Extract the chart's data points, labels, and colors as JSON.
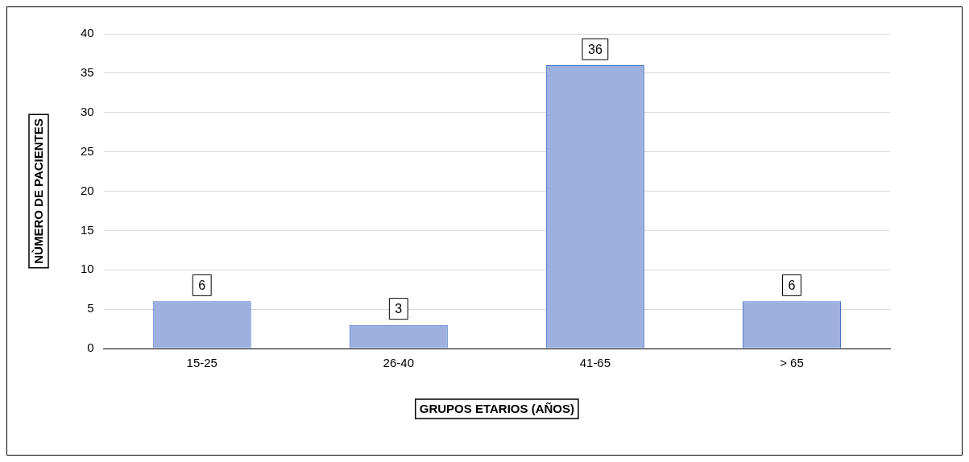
{
  "chart_data": {
    "type": "bar",
    "xlabel": "GRUPOS ETARIOS (AÑOS)",
    "ylabel": "NÙMERO DE PACIENTES",
    "categories": [
      "15-25",
      "26-40",
      "41-65",
      "> 65"
    ],
    "values": [
      6,
      3,
      36,
      6
    ],
    "color": "#9db0e0",
    "ylim": [
      0,
      40
    ],
    "yticks": [
      0,
      5,
      10,
      15,
      20,
      25,
      30,
      35,
      40
    ],
    "grid": "y",
    "data_labels": true,
    "legend": false
  }
}
